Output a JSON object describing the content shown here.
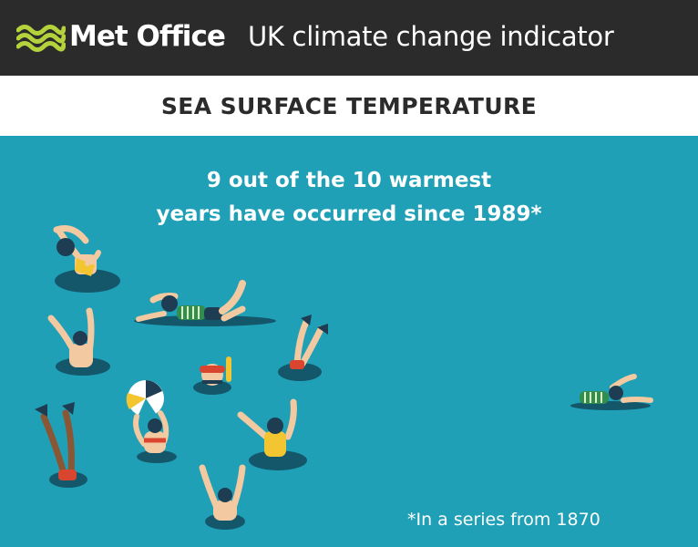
{
  "header": {
    "brand": "Met Office",
    "subtitle": "UK climate change indicator",
    "logo_icon": "met-office-wave-logo-icon"
  },
  "title": "SEA SURFACE TEMPERATURE",
  "headline": {
    "line1": "9 out of the 10 warmest",
    "line2": "years have occurred since 1989*"
  },
  "footnote": "*In a series from 1870",
  "colors": {
    "header_bg": "#2b2b2b",
    "sea": "#1fa0b6",
    "logo_green": "#b4d23c",
    "water_ring": "#14576b",
    "skin": "#f2c9a0",
    "hair": "#1e3d52"
  }
}
